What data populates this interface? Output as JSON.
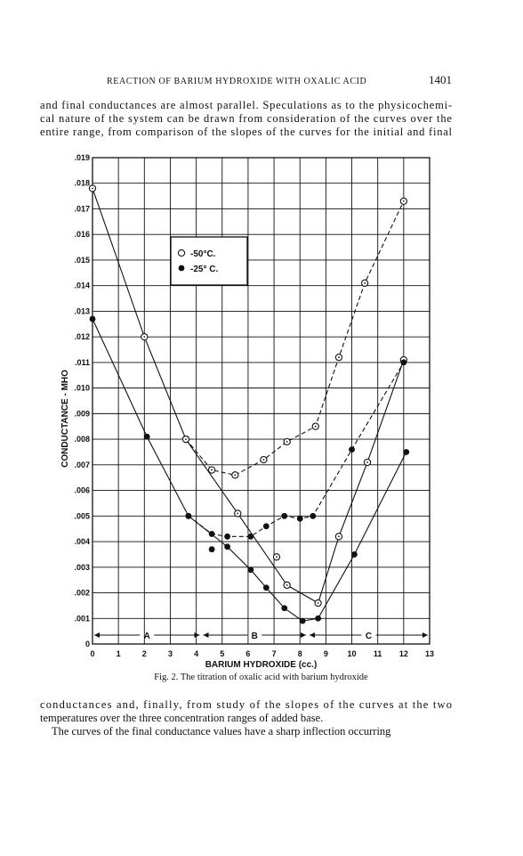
{
  "header": {
    "title": "REACTION OF BARIUM HYDROXIDE WITH OXALIC ACID",
    "page_number": "1401"
  },
  "paragraphs_before": [
    [
      "and final conductances are almost parallel. Speculations as to the physicochemi-",
      "cal nature of the system can be drawn from consideration of the curves over the",
      "entire range, from comparison of the slopes of the curves for the initial and final"
    ]
  ],
  "chart_data": {
    "type": "scatter",
    "caption": "Fig. 2. The titration of oxalic acid with barium hydroxide",
    "xlabel": "BARIUM HYDROXIDE (cc.)",
    "ylabel": "CONDUCTANCE - MHO",
    "xlim": [
      0,
      13
    ],
    "ylim": [
      0,
      0.019
    ],
    "xticks": [
      0,
      1,
      2,
      3,
      4,
      5,
      6,
      7,
      8,
      9,
      10,
      11,
      12,
      13
    ],
    "yticks": [
      0,
      {
        "value": 0.001,
        "label": ".001"
      },
      {
        "value": 0.002,
        "label": ".002"
      },
      {
        "value": 0.003,
        "label": ".003"
      },
      {
        "value": 0.004,
        "label": ".004"
      },
      {
        "value": 0.005,
        "label": ".005"
      },
      {
        "value": 0.006,
        "label": ".006"
      },
      {
        "value": 0.007,
        "label": ".007"
      },
      {
        "value": 0.008,
        "label": ".008"
      },
      {
        "value": 0.009,
        "label": ".009"
      },
      {
        "value": 0.01,
        "label": ".010"
      },
      {
        "value": 0.011,
        "label": ".011"
      },
      {
        "value": 0.012,
        "label": ".012"
      },
      {
        "value": 0.013,
        "label": ".013"
      },
      {
        "value": 0.014,
        "label": ".014"
      },
      {
        "value": 0.015,
        "label": ".015"
      },
      {
        "value": 0.016,
        "label": ".016"
      },
      {
        "value": 0.017,
        "label": ".017"
      },
      {
        "value": 0.018,
        "label": ".018"
      },
      {
        "value": 0.019,
        "label": ".019"
      }
    ],
    "grid": true,
    "color": "#111111",
    "region_labels": [
      "A",
      "B",
      "C"
    ],
    "series": [
      {
        "name": "-50°C.",
        "marker": "open",
        "curves": [
          {
            "dash": false,
            "x": [
              0,
              2,
              3.6,
              5.6,
              7.5,
              8.7,
              9.5,
              10.6,
              12
            ],
            "values": [
              0.0178,
              0.012,
              0.008,
              0.0051,
              0.0023,
              0.0016,
              0.0042,
              0.0071,
              0.0111
            ]
          },
          {
            "dash": true,
            "x": [
              3.6,
              4.6,
              5.5,
              6.6,
              7.5,
              8.6,
              9.5,
              10.5,
              12
            ],
            "values": [
              0.008,
              0.0068,
              0.0066,
              0.0072,
              0.0079,
              0.0085,
              0.0112,
              0.0141,
              0.0173
            ]
          },
          {
            "dash": null,
            "x": [
              7.1
            ],
            "values": [
              0.0034
            ]
          }
        ]
      },
      {
        "name": "-25° C.",
        "marker": "filled",
        "curves": [
          {
            "dash": false,
            "x": [
              0,
              2.1,
              3.7,
              5.2,
              6.1,
              6.7,
              7.4,
              8.1,
              8.7,
              10.1,
              12.1
            ],
            "values": [
              0.0127,
              0.0081,
              0.005,
              0.0038,
              0.0029,
              0.0022,
              0.0014,
              0.0009,
              0.001,
              0.0035,
              0.0075
            ]
          },
          {
            "dash": true,
            "x": [
              3.7,
              4.6,
              5.2,
              6.1,
              6.7,
              7.4,
              8.0,
              8.5,
              10.0,
              12.0
            ],
            "values": [
              0.005,
              0.0043,
              0.0042,
              0.0042,
              0.0046,
              0.005,
              0.0049,
              0.005,
              0.0076,
              0.011
            ]
          },
          {
            "dash": null,
            "x": [
              4.6
            ],
            "values": [
              0.0037
            ]
          }
        ]
      }
    ]
  },
  "paragraphs_after": [
    [
      "conductances and, finally, from study of the slopes of the curves at the two",
      "temperatures over the three concentration ranges of added base."
    ],
    [
      "The curves of the final conductance values have a sharp inflection occurring"
    ]
  ]
}
